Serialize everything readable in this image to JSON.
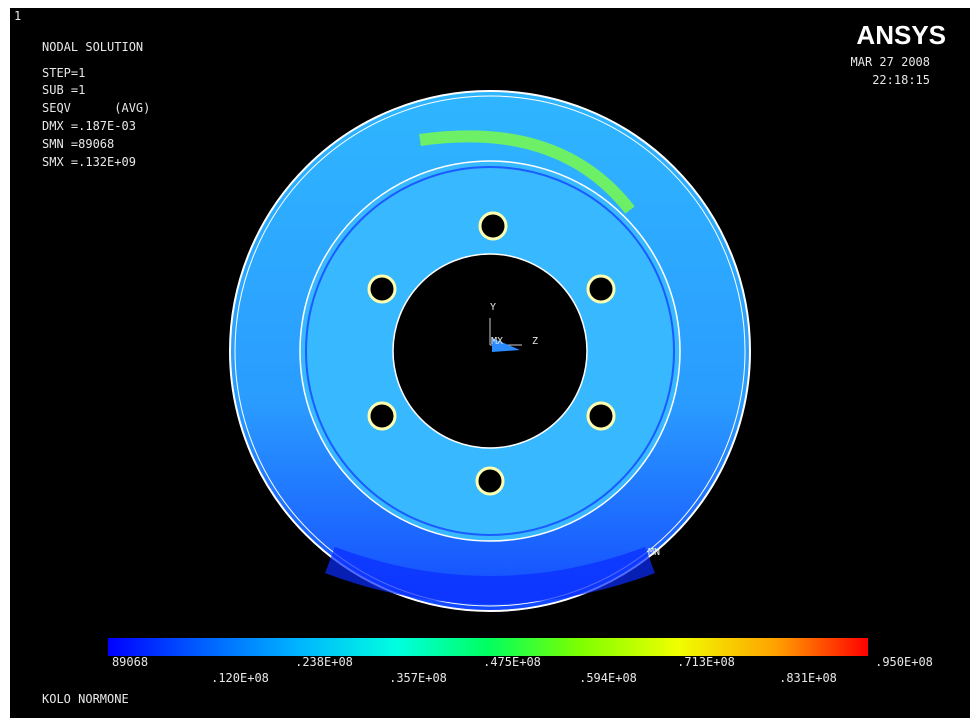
{
  "window_number": "1",
  "info": [
    "NODAL SOLUTION",
    "STEP=1",
    "SUB =1",
    "SEQV      (AVG)",
    "DMX =.187E-03",
    "SMN =89068",
    "SMX =.132E+09"
  ],
  "logo": "ANSYS",
  "date": "MAR 27 2008",
  "time": "22:18:15",
  "triad": {
    "y": "Y",
    "x": "MX",
    "z": "Z"
  },
  "min_marker": "MN",
  "legend_labels": [
    "89068",
    ".120E+08",
    ".238E+08",
    ".357E+08",
    ".475E+08",
    ".594E+08",
    ".713E+08",
    ".831E+08",
    ".950E+08"
  ],
  "model_title": "KOLO NORMONE"
}
